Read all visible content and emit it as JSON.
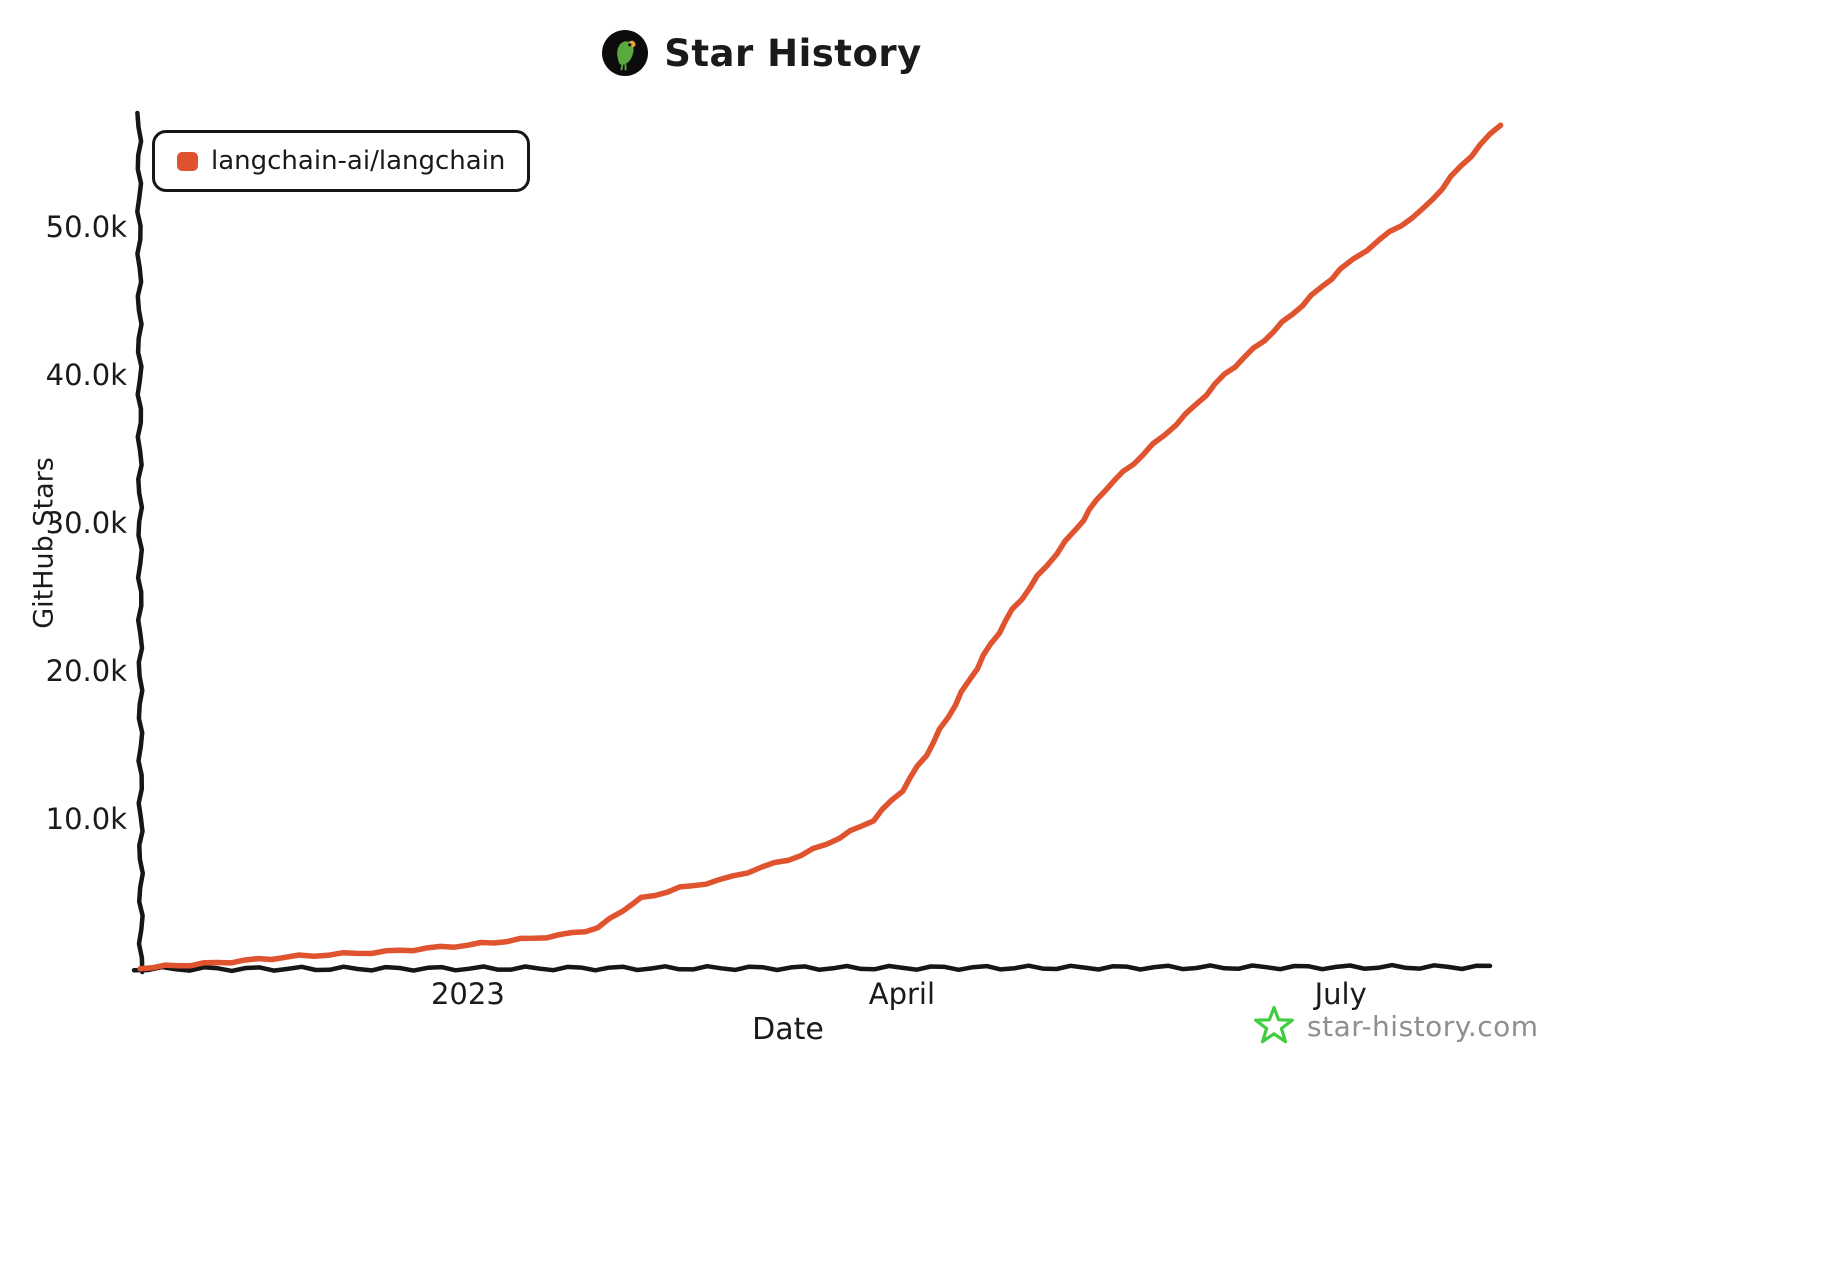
{
  "header": {
    "title": "Star History"
  },
  "legend": {
    "swatch_color": "#e0532f"
  },
  "footer": {
    "brand": "star-history.com",
    "star_icon_color": "#3fcc3f"
  },
  "chart_data": {
    "type": "line",
    "title": "Star History",
    "xlabel": "Date",
    "ylabel": "GitHub Stars",
    "grid": false,
    "legend_position": "top-left",
    "x_range": [
      "2022-10-25",
      "2023-08-03"
    ],
    "ylim": [
      0,
      58000
    ],
    "line_color": "#e0532f",
    "x": [
      "2022-10-25",
      "2022-11-10",
      "2022-11-27",
      "2022-12-15",
      "2023-01-01",
      "2023-01-20",
      "2023-01-28",
      "2023-02-02",
      "2023-02-06",
      "2023-02-14",
      "2023-02-22",
      "2023-03-03",
      "2023-03-11",
      "2023-03-19",
      "2023-03-26",
      "2023-04-01",
      "2023-04-06",
      "2023-04-12",
      "2023-04-18",
      "2023-04-24",
      "2023-05-01",
      "2023-05-07",
      "2023-05-13",
      "2023-05-21",
      "2023-05-30",
      "2023-06-07",
      "2023-06-15",
      "2023-06-23",
      "2023-07-01",
      "2023-07-09",
      "2023-07-18",
      "2023-07-26",
      "2023-08-03"
    ],
    "series": [
      {
        "name": "langchain-ai/langchain",
        "color": "#e0532f",
        "values": [
          0,
          350,
          800,
          1100,
          1550,
          2200,
          2700,
          3900,
          4700,
          5400,
          5900,
          6800,
          7600,
          8800,
          10000,
          12000,
          14400,
          17800,
          21100,
          24200,
          27200,
          29600,
          32300,
          34700,
          37400,
          40100,
          42400,
          44800,
          47200,
          49200,
          51200,
          54200,
          57000
        ]
      }
    ],
    "y_ticks": [
      {
        "label": "10.0k",
        "value": 10000
      },
      {
        "label": "20.0k",
        "value": 20000
      },
      {
        "label": "30.0k",
        "value": 30000
      },
      {
        "label": "40.0k",
        "value": 40000
      },
      {
        "label": "50.0k",
        "value": 50000
      }
    ],
    "x_ticks": [
      {
        "label": "2023",
        "date": "2023-01-01"
      },
      {
        "label": "April",
        "date": "2023-04-01"
      },
      {
        "label": "July",
        "date": "2023-07-01"
      }
    ]
  }
}
